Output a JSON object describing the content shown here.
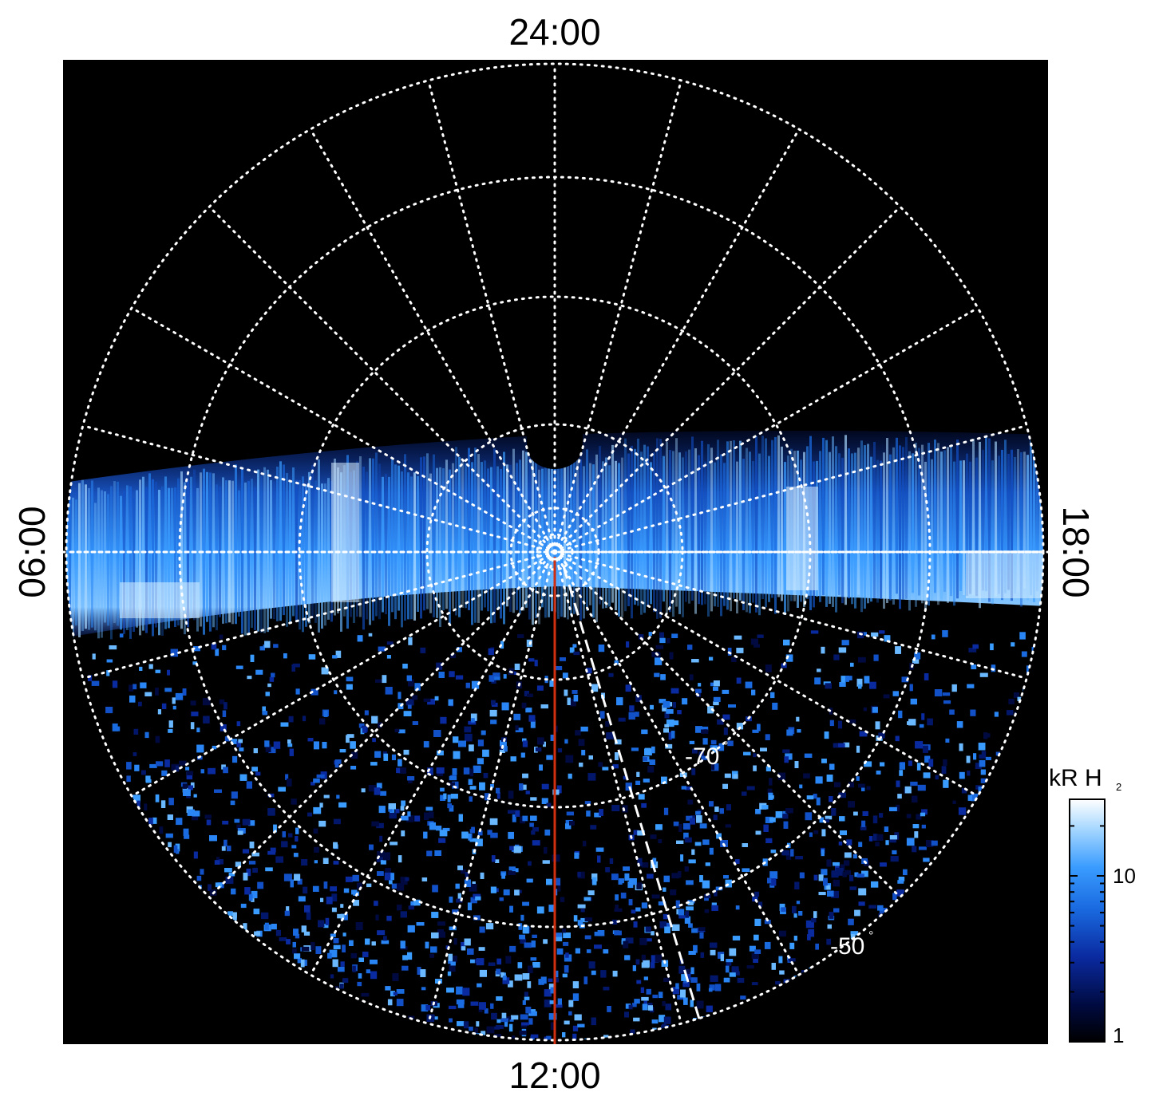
{
  "local_time_labels": {
    "top": "24:00",
    "bottom": "12:00",
    "left": "06:00",
    "right": "18:00"
  },
  "latitude_labels": [
    {
      "text": "-70",
      "degree": "°"
    },
    {
      "text": "-50",
      "degree": "°"
    }
  ],
  "colorbar": {
    "title": "kR H",
    "title_subscript": "2",
    "tick_labels": [
      "10",
      "1"
    ],
    "scale": "log",
    "colors": [
      "#000000",
      "#000a40",
      "#0a2aa0",
      "#1a6ae0",
      "#3a9cff",
      "#a8d8ff",
      "#ffffff"
    ]
  },
  "colors": {
    "plot_background": "#000000",
    "grid": "#ffffff",
    "noon_meridian": "#d03010",
    "dashed_track": "#ffffff"
  }
}
